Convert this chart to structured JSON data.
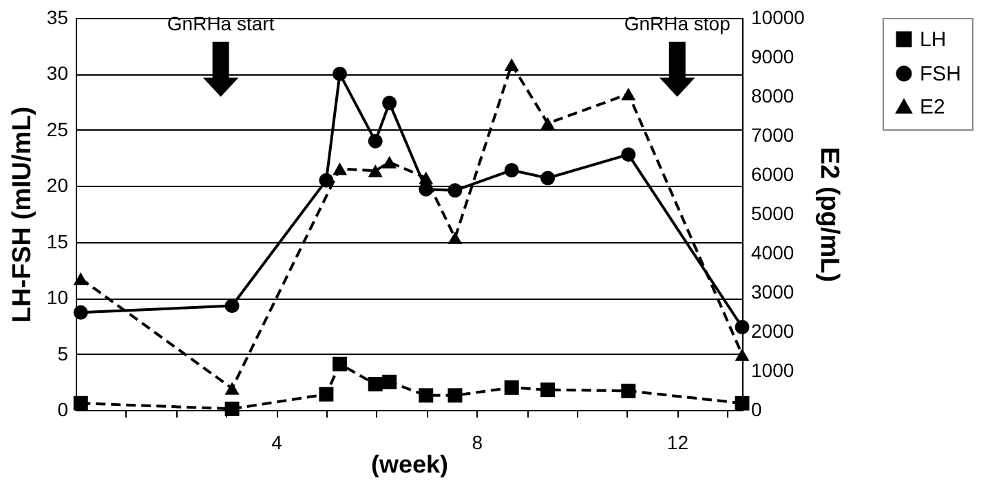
{
  "chart_data": {
    "type": "line",
    "xlabel": "(week)",
    "ylabel": "LH-FSH (mIU/mL)",
    "y2label": "E2 (pg/mL)",
    "xlim": [
      0,
      13.3
    ],
    "xticks": [
      {
        "value": 1,
        "label": null
      },
      {
        "value": 2,
        "label": null
      },
      {
        "value": 3,
        "label": null
      },
      4,
      {
        "value": 5,
        "label": null
      },
      {
        "value": 6,
        "label": null
      },
      {
        "value": 7,
        "label": null
      },
      8,
      {
        "value": 9,
        "label": null
      },
      {
        "value": 10,
        "label": null
      },
      {
        "value": 11,
        "label": null
      },
      12,
      {
        "value": 13,
        "label": null
      }
    ],
    "ylim": [
      0,
      35
    ],
    "yticks": [
      0,
      5,
      10,
      15,
      20,
      25,
      30,
      35
    ],
    "y2lim": [
      0,
      10000
    ],
    "y2ticks": [
      0,
      1000,
      2000,
      3000,
      4000,
      5000,
      6000,
      7000,
      8000,
      9000,
      10000
    ],
    "grid": "y",
    "legend": "right",
    "series": [
      {
        "name": "LH",
        "color": "#000000",
        "marker": "square",
        "line_style": "dashed",
        "x": [
          0.1,
          3.12,
          5.0,
          5.27,
          5.98,
          6.26,
          6.99,
          7.57,
          8.7,
          9.42,
          11.03,
          13.3
        ],
        "values": [
          0.6,
          0.1,
          1.4,
          4.1,
          2.3,
          2.5,
          1.3,
          1.3,
          2.0,
          1.8,
          1.7,
          0.6
        ]
      },
      {
        "name": "FSH",
        "color": "#000000",
        "marker": "circle",
        "line_style": "solid",
        "x": [
          0.1,
          3.12,
          5.0,
          5.27,
          5.98,
          6.26,
          6.99,
          7.57,
          8.7,
          9.42,
          11.03,
          13.3
        ],
        "values": [
          8.7,
          9.3,
          20.5,
          30.0,
          24.0,
          27.4,
          19.7,
          19.6,
          21.4,
          20.7,
          22.8,
          7.4
        ]
      },
      {
        "name": "E2",
        "color": "#000000",
        "marker": "triangle",
        "line_style": "dashed",
        "axis": "y2",
        "x": [
          0.1,
          3.12,
          5.27,
          5.98,
          6.26,
          6.99,
          7.57,
          8.7,
          9.42,
          11.03,
          13.3
        ],
        "values": [
          3350,
          550,
          6150,
          6100,
          6320,
          5920,
          4390,
          8810,
          7310,
          8060,
          1410
        ]
      }
    ],
    "annotations": [
      "GnRHa start",
      "GnRHa stop"
    ]
  }
}
